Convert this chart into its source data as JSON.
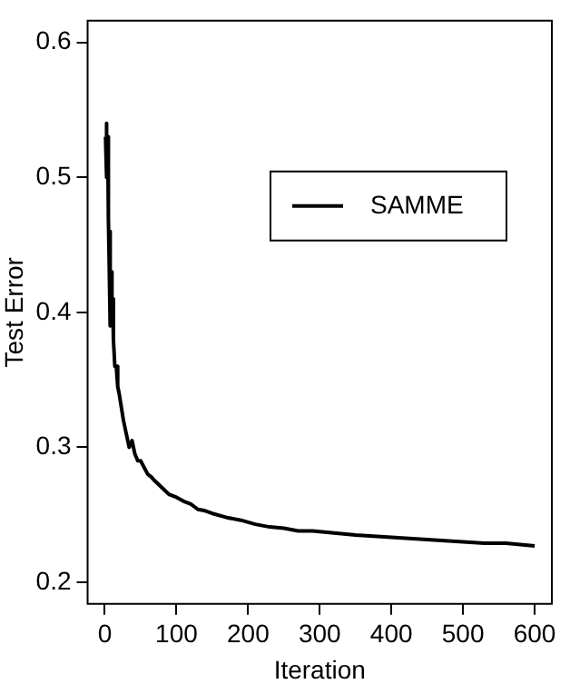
{
  "chart_data": {
    "type": "line",
    "xlabel": "Iteration",
    "ylabel": "Test Error",
    "series": [
      {
        "name": "SAMME",
        "color": "#000000",
        "x": [
          1,
          2,
          3,
          4,
          5,
          6,
          7,
          8,
          9,
          10,
          11,
          12,
          14,
          16,
          18,
          20,
          23,
          26,
          30,
          34,
          38,
          42,
          46,
          50,
          55,
          60,
          65,
          70,
          80,
          90,
          100,
          110,
          120,
          130,
          140,
          150,
          170,
          190,
          210,
          230,
          250,
          270,
          290,
          310,
          330,
          350,
          380,
          410,
          440,
          470,
          500,
          530,
          560,
          580,
          600
        ],
        "values": [
          0.53,
          0.54,
          0.5,
          0.53,
          0.47,
          0.44,
          0.46,
          0.39,
          0.43,
          0.4,
          0.41,
          0.38,
          0.36,
          0.36,
          0.345,
          0.34,
          0.33,
          0.32,
          0.31,
          0.3,
          0.305,
          0.295,
          0.29,
          0.29,
          0.285,
          0.28,
          0.278,
          0.275,
          0.27,
          0.265,
          0.263,
          0.26,
          0.258,
          0.254,
          0.253,
          0.251,
          0.248,
          0.246,
          0.243,
          0.241,
          0.24,
          0.238,
          0.238,
          0.237,
          0.236,
          0.235,
          0.234,
          0.233,
          0.232,
          0.231,
          0.23,
          0.229,
          0.229,
          0.228,
          0.227
        ]
      }
    ],
    "xlim": [
      -24,
      624
    ],
    "xticks": [
      0,
      100,
      200,
      300,
      400,
      500,
      600
    ],
    "ylim": [
      0.184,
      0.616
    ],
    "yticks": [
      0.2,
      0.3,
      0.4,
      0.5,
      0.6
    ],
    "grid": false,
    "legend": "top right",
    "marker": "none",
    "line_style": "solid"
  }
}
